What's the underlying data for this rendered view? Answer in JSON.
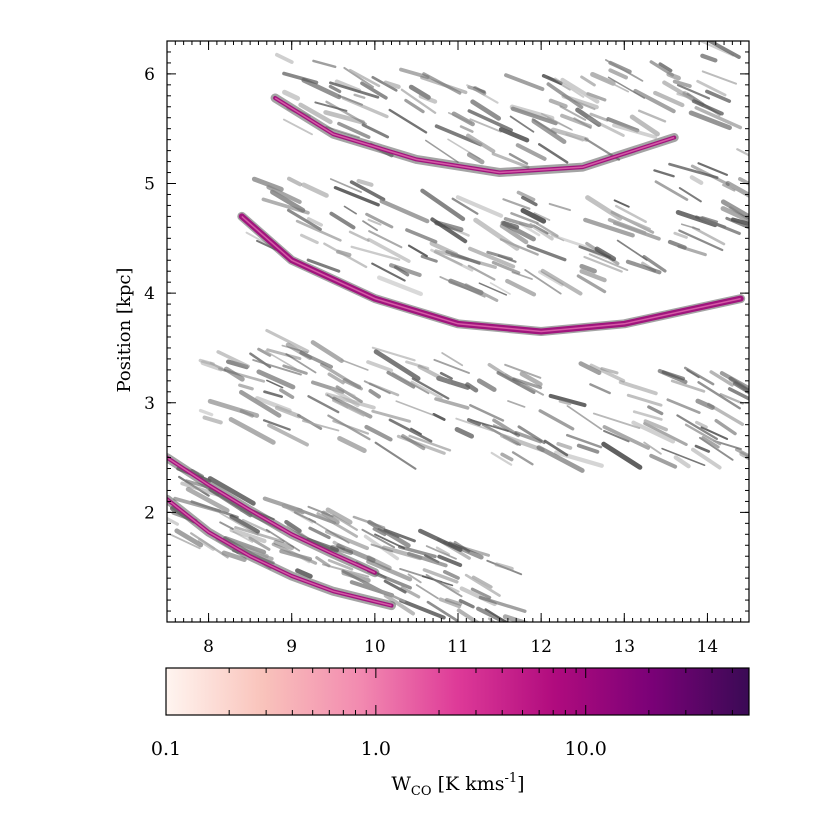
{
  "chart_data": {
    "type": "heatmap",
    "title": "",
    "xlabel": "",
    "ylabel": "Position [kpc]",
    "xlim": [
      7.5,
      14.5
    ],
    "ylim": [
      1.0,
      6.3
    ],
    "xticks": [
      8,
      9,
      10,
      11,
      12,
      13,
      14
    ],
    "yticks": [
      2,
      3,
      4,
      5,
      6
    ],
    "grid": false,
    "background_layer": "grayscale gas density",
    "overlay": "pink-magenta CO emission along spiral arms",
    "arms": [
      {
        "x": [
          8.8,
          9.5,
          10.5,
          11.5,
          12.5,
          13.6
        ],
        "y": [
          5.78,
          5.45,
          5.22,
          5.1,
          5.15,
          5.42
        ]
      },
      {
        "x": [
          8.4,
          9.0,
          10.0,
          11.0,
          12.0,
          13.0,
          14.4
        ],
        "y": [
          4.7,
          4.3,
          3.95,
          3.72,
          3.65,
          3.72,
          3.95
        ]
      },
      {
        "x": [
          7.5,
          8.0,
          8.5,
          9.0,
          9.5,
          10.2
        ],
        "y": [
          2.12,
          1.82,
          1.6,
          1.42,
          1.28,
          1.15
        ]
      },
      {
        "x": [
          7.5,
          8.0,
          8.5,
          9.0,
          9.5,
          10.0
        ],
        "y": [
          2.5,
          2.25,
          2.02,
          1.8,
          1.62,
          1.45
        ]
      }
    ],
    "colorbar": {
      "label_main": "W",
      "label_sub": "CO",
      "label_unit": " [K kms",
      "label_exp": "-1",
      "label_close": "]",
      "scale": "log",
      "range": [
        0.1,
        60
      ],
      "tick_values": [
        0.1,
        1.0,
        10.0
      ],
      "tick_labels": [
        "0.1",
        "1.0",
        "10.0"
      ],
      "colors": [
        "#fff5f0",
        "#f9c3bb",
        "#f28ab0",
        "#de3a98",
        "#b00b7e",
        "#7a0177",
        "#3a0a55"
      ]
    }
  }
}
